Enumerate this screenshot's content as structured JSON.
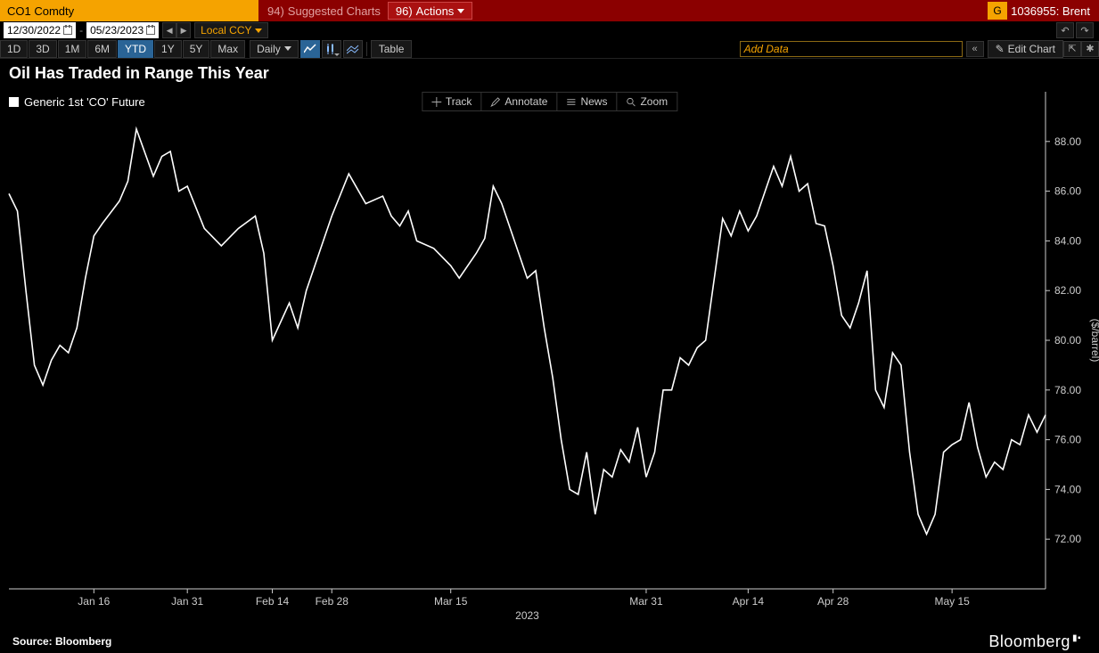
{
  "topbar": {
    "ticker": "CO1 Comdty",
    "suggested_prefix": "94)",
    "suggested_label": "Suggested Charts",
    "actions_prefix": "96)",
    "actions_label": "Actions",
    "right_prefix": "G",
    "right_label": "1036955: Brent"
  },
  "daterow": {
    "start": "12/30/2022",
    "end": "05/23/2023",
    "ccy": "Local CCY"
  },
  "toolbar": {
    "timeframes": [
      "1D",
      "3D",
      "1M",
      "6M",
      "YTD",
      "1Y",
      "5Y",
      "Max"
    ],
    "active_tf": "YTD",
    "freq": "Daily",
    "table_label": "Table",
    "add_data_placeholder": "Add Data",
    "edit_chart_label": "Edit Chart"
  },
  "chart": {
    "title": "Oil Has Traded in Range This Year",
    "legend": "Generic 1st 'CO' Future",
    "tools": [
      "Track",
      "Annotate",
      "News",
      "Zoom"
    ],
    "type": "line",
    "series_color": "#ffffff",
    "background": "#000000",
    "text_color": "#cccccc",
    "line_width": 1.6,
    "ylabel": "($/barrel)",
    "ylim": [
      70,
      90
    ],
    "yticks": [
      72,
      74,
      76,
      78,
      80,
      82,
      84,
      86,
      88
    ],
    "ytick_labels": [
      "72.00",
      "74.00",
      "76.00",
      "78.00",
      "80.00",
      "82.00",
      "84.00",
      "86.00",
      "88.00"
    ],
    "x_year_label": "2023",
    "xticks": [
      10,
      21,
      31,
      38,
      52,
      75,
      87,
      97,
      111
    ],
    "xtick_labels": [
      "Jan 16",
      "Jan 31",
      "Feb 14",
      "Feb 28",
      "Mar 15",
      "Mar 31",
      "Apr 14",
      "Apr 28",
      "May 15"
    ],
    "data": [
      [
        0,
        85.9
      ],
      [
        1,
        85.2
      ],
      [
        2,
        82.0
      ],
      [
        3,
        79.0
      ],
      [
        4,
        78.2
      ],
      [
        5,
        79.2
      ],
      [
        6,
        79.8
      ],
      [
        7,
        79.5
      ],
      [
        8,
        80.5
      ],
      [
        9,
        82.5
      ],
      [
        10,
        84.2
      ],
      [
        11,
        84.7
      ],
      [
        13,
        85.6
      ],
      [
        14,
        86.4
      ],
      [
        15,
        88.5
      ],
      [
        17,
        86.6
      ],
      [
        18,
        87.4
      ],
      [
        19,
        87.6
      ],
      [
        20,
        86.0
      ],
      [
        21,
        86.2
      ],
      [
        23,
        84.5
      ],
      [
        25,
        83.8
      ],
      [
        27,
        84.5
      ],
      [
        29,
        85.0
      ],
      [
        30,
        83.5
      ],
      [
        31,
        80.0
      ],
      [
        33,
        81.5
      ],
      [
        34,
        80.5
      ],
      [
        35,
        82.0
      ],
      [
        37,
        84.0
      ],
      [
        38,
        85.0
      ],
      [
        40,
        86.7
      ],
      [
        42,
        85.5
      ],
      [
        44,
        85.8
      ],
      [
        45,
        85.0
      ],
      [
        46,
        84.6
      ],
      [
        47,
        85.2
      ],
      [
        48,
        84.0
      ],
      [
        50,
        83.7
      ],
      [
        52,
        83.0
      ],
      [
        53,
        82.5
      ],
      [
        55,
        83.5
      ],
      [
        56,
        84.1
      ],
      [
        57,
        86.2
      ],
      [
        58,
        85.5
      ],
      [
        60,
        83.5
      ],
      [
        61,
        82.5
      ],
      [
        62,
        82.8
      ],
      [
        63,
        80.5
      ],
      [
        64,
        78.5
      ],
      [
        65,
        76.0
      ],
      [
        66,
        74.0
      ],
      [
        67,
        73.8
      ],
      [
        68,
        75.5
      ],
      [
        69,
        73.0
      ],
      [
        70,
        74.8
      ],
      [
        71,
        74.5
      ],
      [
        72,
        75.6
      ],
      [
        73,
        75.1
      ],
      [
        74,
        76.5
      ],
      [
        75,
        74.5
      ],
      [
        76,
        75.5
      ],
      [
        77,
        78.0
      ],
      [
        78,
        78.0
      ],
      [
        79,
        79.3
      ],
      [
        80,
        79.0
      ],
      [
        81,
        79.7
      ],
      [
        82,
        80.0
      ],
      [
        84,
        84.9
      ],
      [
        85,
        84.2
      ],
      [
        86,
        85.2
      ],
      [
        87,
        84.4
      ],
      [
        88,
        85.0
      ],
      [
        89,
        86.0
      ],
      [
        90,
        87.0
      ],
      [
        91,
        86.2
      ],
      [
        92,
        87.4
      ],
      [
        93,
        86.0
      ],
      [
        94,
        86.3
      ],
      [
        95,
        84.7
      ],
      [
        96,
        84.6
      ],
      [
        97,
        83.0
      ],
      [
        98,
        81.0
      ],
      [
        99,
        80.5
      ],
      [
        100,
        81.5
      ],
      [
        101,
        82.8
      ],
      [
        102,
        78.0
      ],
      [
        103,
        77.3
      ],
      [
        104,
        79.5
      ],
      [
        105,
        79.0
      ],
      [
        106,
        75.5
      ],
      [
        107,
        73.0
      ],
      [
        108,
        72.2
      ],
      [
        109,
        73.0
      ],
      [
        110,
        75.5
      ],
      [
        111,
        75.8
      ],
      [
        112,
        76.0
      ],
      [
        113,
        77.5
      ],
      [
        114,
        75.7
      ],
      [
        115,
        74.5
      ],
      [
        116,
        75.1
      ],
      [
        117,
        74.8
      ],
      [
        118,
        76.0
      ],
      [
        119,
        75.8
      ],
      [
        120,
        77.0
      ],
      [
        121,
        76.3
      ],
      [
        122,
        77.0
      ]
    ]
  },
  "footer": {
    "source": "Source: Bloomberg",
    "brand": "Bloomberg"
  },
  "colors": {
    "accent_orange": "#f5a300",
    "accent_red": "#8b0000",
    "accent_blue": "#2a6496"
  }
}
